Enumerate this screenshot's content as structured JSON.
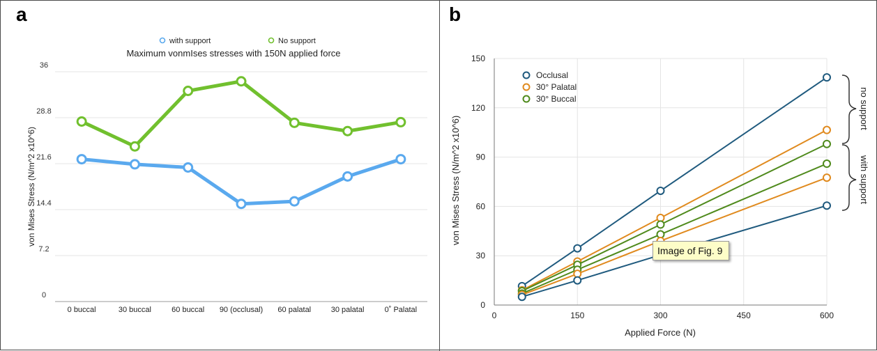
{
  "panels": {
    "a_label": "a",
    "b_label": "b"
  },
  "tooltip": "Image of Fig. 9",
  "chart_data": [
    {
      "type": "line",
      "title": "Maximum vonmIses stresses with 150N applied force",
      "xlabel": "",
      "ylabel": "von Mises Stress (N/m^2 x10^6)",
      "categories": [
        "0 buccal",
        "30 buccal",
        "60 buccal",
        "90 (occlusal)",
        "60 palatal",
        "30 palatal",
        "0˚ Palatal"
      ],
      "ylim": [
        0,
        36
      ],
      "yticks": [
        "0",
        "7.2",
        "14.4",
        "21.6",
        "28.8",
        "36"
      ],
      "grid": true,
      "legend": "top-center",
      "series": [
        {
          "name": "with support",
          "color": "#5aa9ee",
          "values": [
            22.3,
            21.5,
            21.0,
            15.3,
            15.7,
            19.6,
            22.3
          ]
        },
        {
          "name": "No support",
          "color": "#71c02e",
          "values": [
            28.2,
            24.3,
            33.0,
            34.5,
            28.0,
            26.7,
            28.1
          ]
        }
      ]
    },
    {
      "type": "line",
      "title": "",
      "xlabel": "Applied Force (N)",
      "ylabel": "von Mises Stress (N/m^2 x10^6)",
      "xlim": [
        0,
        600
      ],
      "ylim": [
        0,
        150
      ],
      "xticks": [
        "0",
        "150",
        "300",
        "450",
        "600"
      ],
      "yticks": [
        "0",
        "30",
        "60",
        "90",
        "120",
        "150"
      ],
      "grid": true,
      "legend": "top-left",
      "x": [
        50,
        150,
        300,
        600
      ],
      "series": [
        {
          "name": "Occlusal",
          "color": "#1f5a7e",
          "values": [
            11.5,
            34.5,
            69.5,
            138.5
          ]
        },
        {
          "name": "30° Palatal",
          "color": "#e08a1e",
          "values": [
            9,
            26.5,
            53,
            106.5
          ]
        },
        {
          "name": "30° Buccal",
          "color": "#4f8a1c",
          "values": [
            8.5,
            24.5,
            49,
            98
          ]
        },
        {
          "name": "",
          "color": "#4f8a1c",
          "values": [
            7,
            21.5,
            43,
            86
          ]
        },
        {
          "name": "",
          "color": "#e08a1e",
          "values": [
            6.2,
            19,
            39,
            77.5
          ]
        },
        {
          "name": "",
          "color": "#1f5a7e",
          "values": [
            5,
            15,
            30.5,
            60.5
          ]
        }
      ],
      "annotations": [
        "no support",
        "with support"
      ]
    }
  ]
}
